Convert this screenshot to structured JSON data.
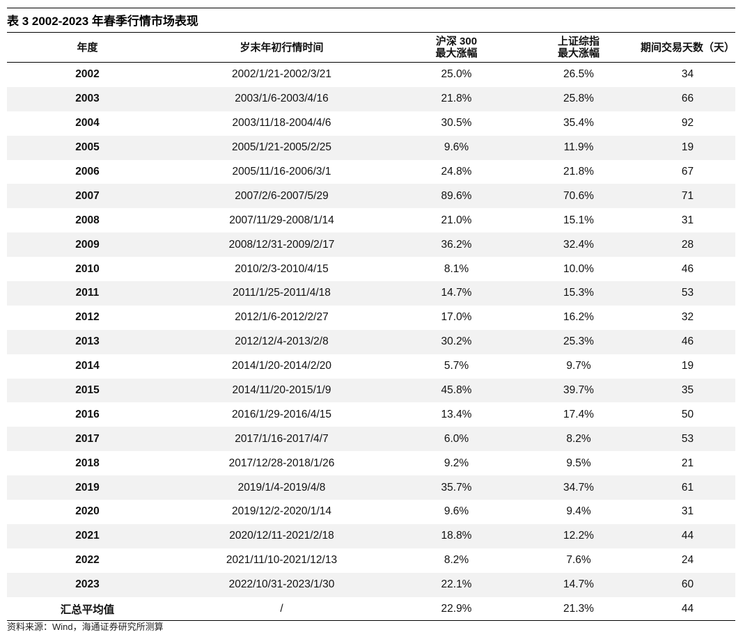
{
  "title": "表 3 2002-2023 年春季行情市场表现",
  "headers": {
    "year": "年度",
    "period": "岁末年初行情时间",
    "hs300_line1": "沪深 300",
    "hs300_line2": "最大涨幅",
    "sh_line1": "上证综指",
    "sh_line2": "最大涨幅",
    "days": "期间交易天数（天）"
  },
  "rows": [
    {
      "year": "2002",
      "period": "2002/1/21-2002/3/21",
      "hs300": "25.0%",
      "sh": "26.5%",
      "days": "34"
    },
    {
      "year": "2003",
      "period": "2003/1/6-2003/4/16",
      "hs300": "21.8%",
      "sh": "25.8%",
      "days": "66"
    },
    {
      "year": "2004",
      "period": "2003/11/18-2004/4/6",
      "hs300": "30.5%",
      "sh": "35.4%",
      "days": "92"
    },
    {
      "year": "2005",
      "period": "2005/1/21-2005/2/25",
      "hs300": "9.6%",
      "sh": "11.9%",
      "days": "19"
    },
    {
      "year": "2006",
      "period": "2005/11/16-2006/3/1",
      "hs300": "24.8%",
      "sh": "21.8%",
      "days": "67"
    },
    {
      "year": "2007",
      "period": "2007/2/6-2007/5/29",
      "hs300": "89.6%",
      "sh": "70.6%",
      "days": "71"
    },
    {
      "year": "2008",
      "period": "2007/11/29-2008/1/14",
      "hs300": "21.0%",
      "sh": "15.1%",
      "days": "31"
    },
    {
      "year": "2009",
      "period": "2008/12/31-2009/2/17",
      "hs300": "36.2%",
      "sh": "32.4%",
      "days": "28"
    },
    {
      "year": "2010",
      "period": "2010/2/3-2010/4/15",
      "hs300": "8.1%",
      "sh": "10.0%",
      "days": "46"
    },
    {
      "year": "2011",
      "period": "2011/1/25-2011/4/18",
      "hs300": "14.7%",
      "sh": "15.3%",
      "days": "53"
    },
    {
      "year": "2012",
      "period": "2012/1/6-2012/2/27",
      "hs300": "17.0%",
      "sh": "16.2%",
      "days": "32"
    },
    {
      "year": "2013",
      "period": "2012/12/4-2013/2/8",
      "hs300": "30.2%",
      "sh": "25.3%",
      "days": "46"
    },
    {
      "year": "2014",
      "period": "2014/1/20-2014/2/20",
      "hs300": "5.7%",
      "sh": "9.7%",
      "days": "19"
    },
    {
      "year": "2015",
      "period": "2014/11/20-2015/1/9",
      "hs300": "45.8%",
      "sh": "39.7%",
      "days": "35"
    },
    {
      "year": "2016",
      "period": "2016/1/29-2016/4/15",
      "hs300": "13.4%",
      "sh": "17.4%",
      "days": "50"
    },
    {
      "year": "2017",
      "period": "2017/1/16-2017/4/7",
      "hs300": "6.0%",
      "sh": "8.2%",
      "days": "53"
    },
    {
      "year": "2018",
      "period": "2017/12/28-2018/1/26",
      "hs300": "9.2%",
      "sh": "9.5%",
      "days": "21"
    },
    {
      "year": "2019",
      "period": "2019/1/4-2019/4/8",
      "hs300": "35.7%",
      "sh": "34.7%",
      "days": "61"
    },
    {
      "year": "2020",
      "period": "2019/12/2-2020/1/14",
      "hs300": "9.6%",
      "sh": "9.4%",
      "days": "31"
    },
    {
      "year": "2021",
      "period": "2020/12/11-2021/2/18",
      "hs300": "18.8%",
      "sh": "12.2%",
      "days": "44"
    },
    {
      "year": "2022",
      "period": "2021/11/10-2021/12/13",
      "hs300": "8.2%",
      "sh": "7.6%",
      "days": "24"
    },
    {
      "year": "2023",
      "period": "2022/10/31-2023/1/30",
      "hs300": "22.1%",
      "sh": "14.7%",
      "days": "60"
    }
  ],
  "summary": {
    "label": "汇总平均值",
    "period": "/",
    "hs300": "22.9%",
    "sh": "21.3%",
    "days": "44"
  },
  "source": "资料来源：Wind，海通证券研究所测算",
  "colors": {
    "shade": "#f2f2f2",
    "rule": "#000000"
  }
}
